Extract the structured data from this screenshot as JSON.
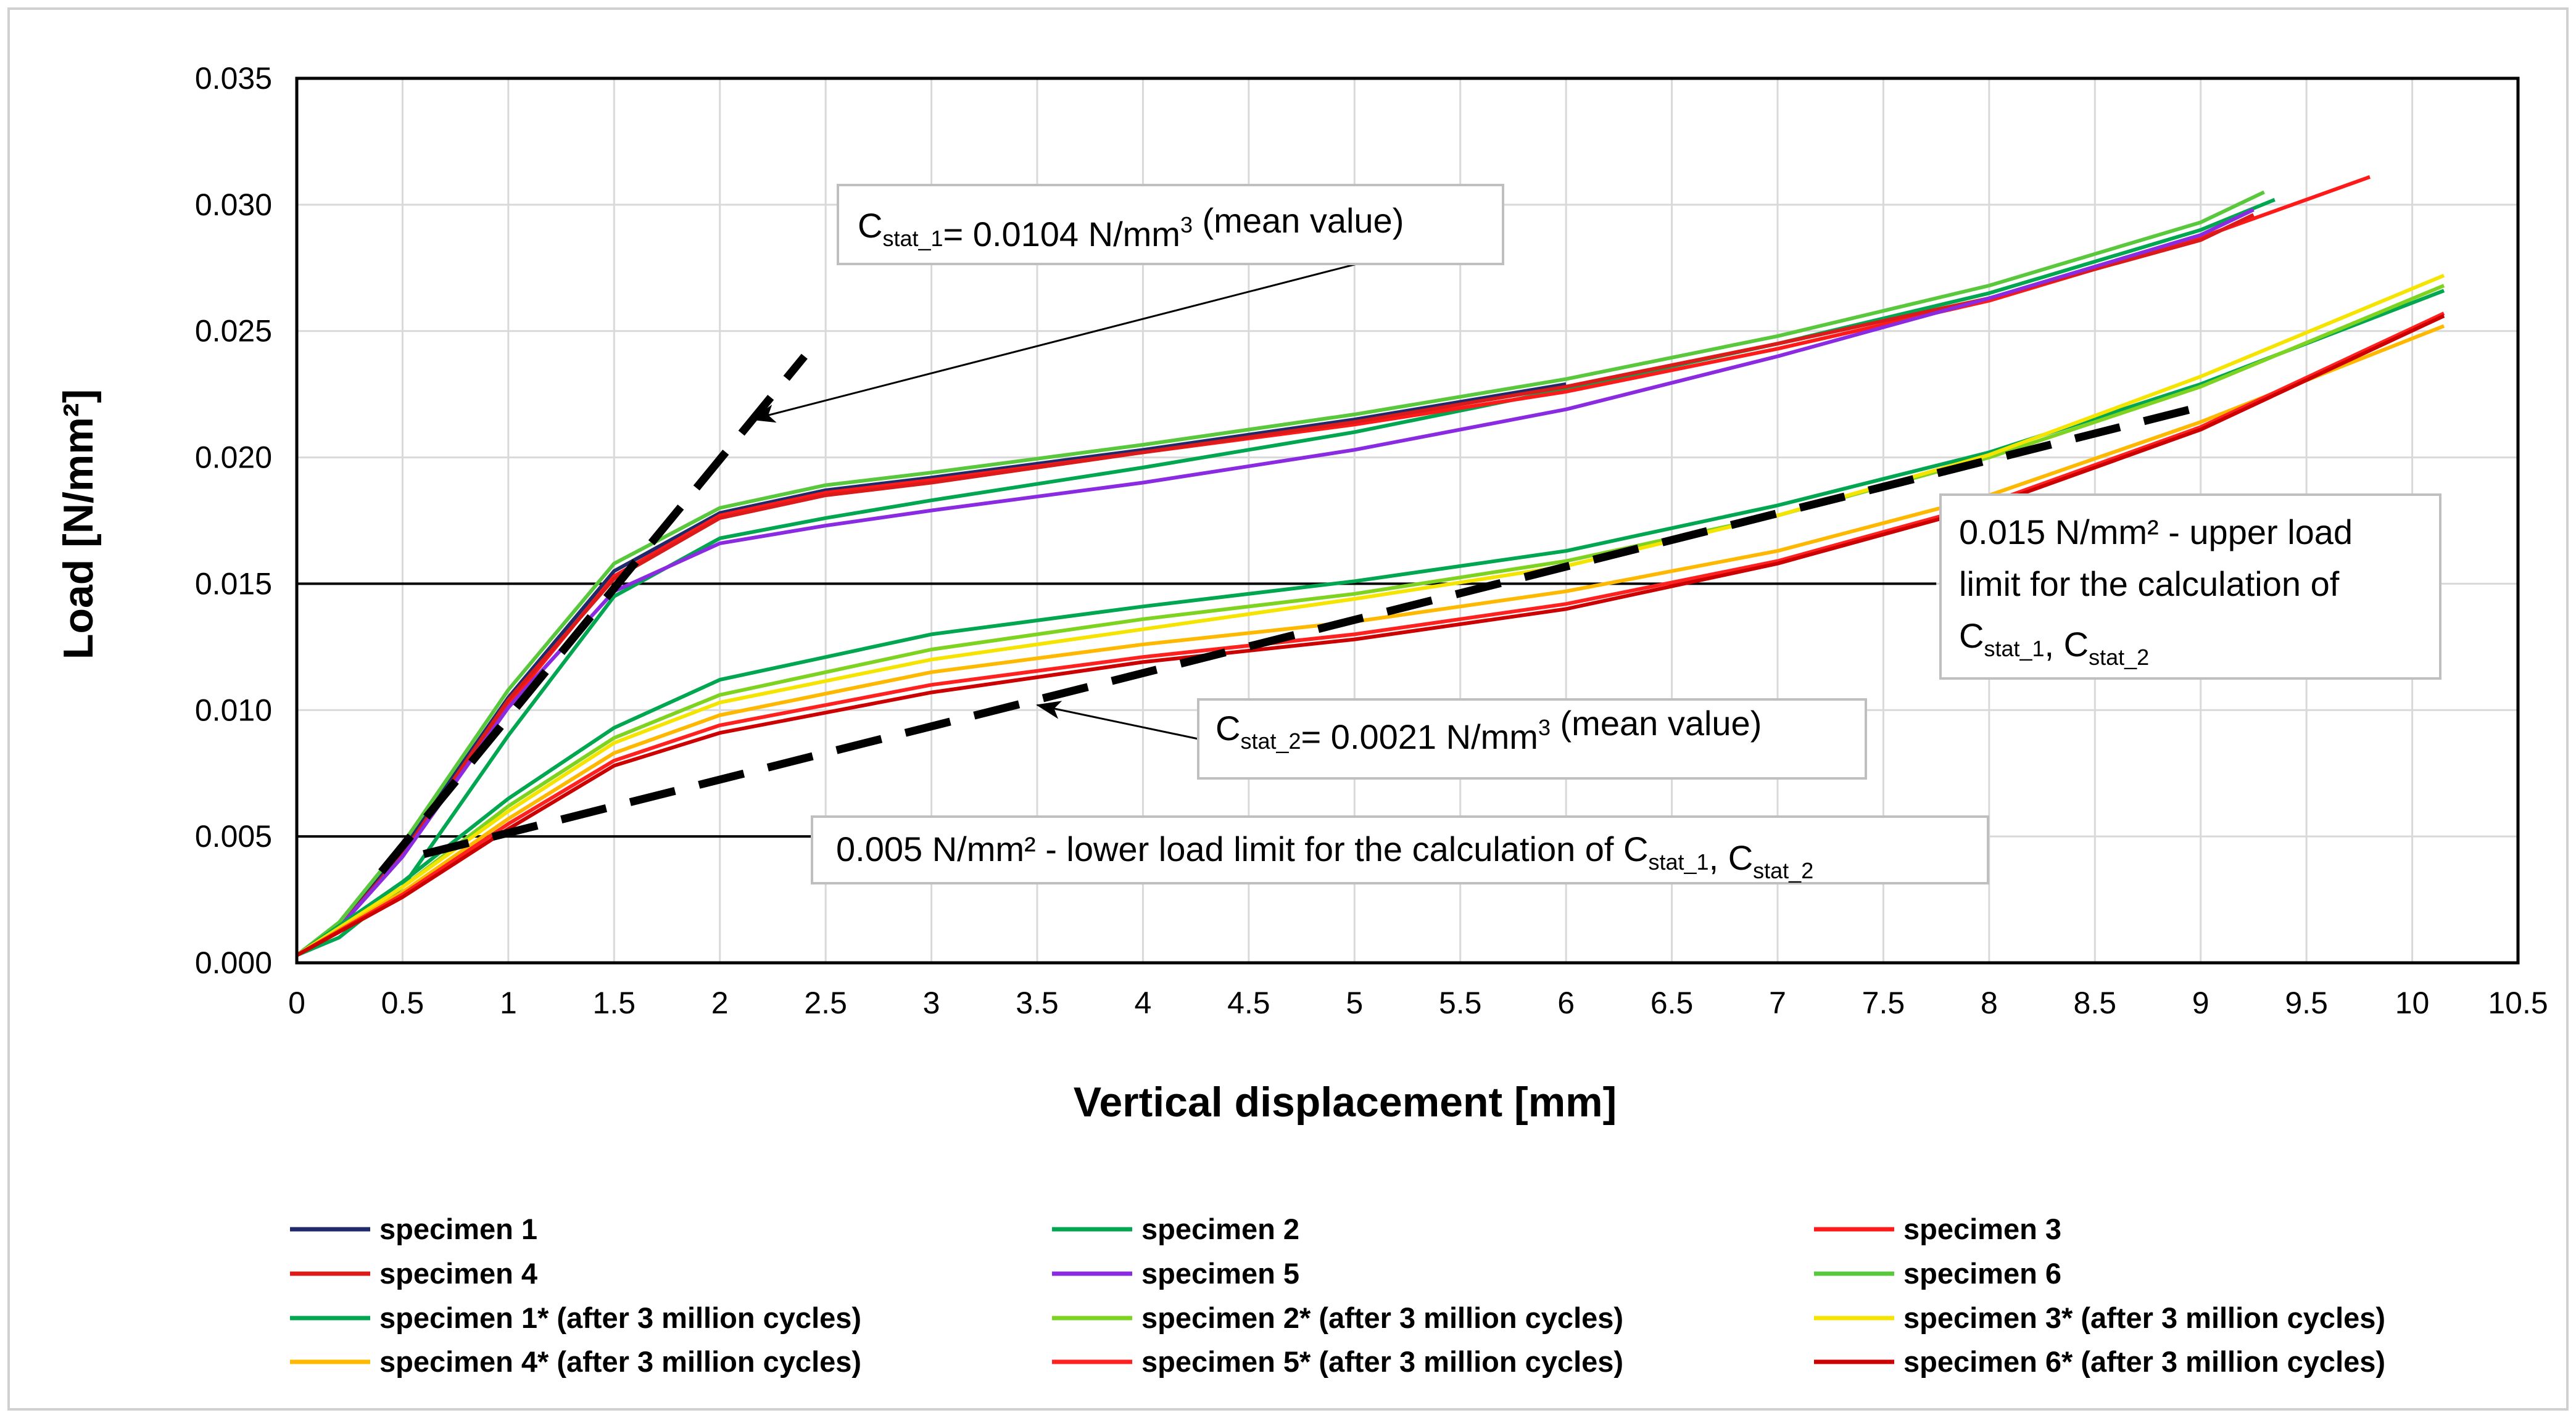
{
  "chart_data": {
    "type": "line",
    "title": "",
    "xlabel": "Vertical displacement [mm]",
    "ylabel": "Load  [N/mm²]",
    "xlim": [
      0,
      10.5
    ],
    "ylim": [
      0,
      0.035
    ],
    "grid": true,
    "x_ticks": [
      "0",
      "0.5",
      "1",
      "1.5",
      "2",
      "2.5",
      "3",
      "3.5",
      "4",
      "4.5",
      "5",
      "5.5",
      "6",
      "6.5",
      "7",
      "7.5",
      "8",
      "8.5",
      "9",
      "9.5",
      "10",
      "10.5"
    ],
    "y_ticks": [
      "0.000",
      "0.005",
      "0.010",
      "0.015",
      "0.020",
      "0.025",
      "0.030",
      "0.035"
    ],
    "series": [
      {
        "name": "specimen 1",
        "color": "#1f2a6b",
        "x": [
          0,
          0.2,
          0.5,
          1,
          1.5,
          2,
          2.5,
          3,
          4,
          5,
          6
        ],
        "y": [
          0.0003,
          0.0015,
          0.0045,
          0.0105,
          0.0155,
          0.0178,
          0.0187,
          0.0192,
          0.0203,
          0.0215,
          0.0229
        ]
      },
      {
        "name": "specimen 2",
        "color": "#00a650",
        "x": [
          0,
          0.2,
          0.5,
          1,
          1.5,
          2,
          2.5,
          3,
          4,
          5,
          6,
          7,
          8,
          9,
          9.35
        ],
        "y": [
          0.0003,
          0.001,
          0.003,
          0.009,
          0.0145,
          0.0168,
          0.0176,
          0.0183,
          0.0196,
          0.021,
          0.0227,
          0.0245,
          0.0265,
          0.029,
          0.0302
        ]
      },
      {
        "name": "specimen 3",
        "color": "#ff1a1a",
        "x": [
          0,
          0.2,
          0.5,
          1,
          1.5,
          2,
          2.5,
          3,
          4,
          5,
          6,
          7,
          8,
          9,
          9.8
        ],
        "y": [
          0.0003,
          0.0014,
          0.0042,
          0.0102,
          0.0153,
          0.0177,
          0.0186,
          0.0191,
          0.0202,
          0.0213,
          0.0226,
          0.0243,
          0.0262,
          0.0287,
          0.0311
        ]
      },
      {
        "name": "specimen 4",
        "color": "#dd1a1a",
        "x": [
          0,
          0.2,
          0.5,
          1,
          1.5,
          2,
          2.5,
          3,
          4,
          5,
          6,
          7,
          8,
          9,
          9.25
        ],
        "y": [
          0.0003,
          0.0014,
          0.0043,
          0.0104,
          0.0152,
          0.0176,
          0.0185,
          0.019,
          0.0202,
          0.0214,
          0.0228,
          0.0245,
          0.0263,
          0.0286,
          0.0296
        ]
      },
      {
        "name": "specimen 5",
        "color": "#8a2be2",
        "x": [
          0,
          0.2,
          0.5,
          1,
          1.5,
          2,
          2.5,
          3,
          4,
          5,
          6,
          7,
          8,
          9,
          9.25
        ],
        "y": [
          0.0003,
          0.0014,
          0.0042,
          0.0101,
          0.0147,
          0.0166,
          0.0173,
          0.0179,
          0.019,
          0.0203,
          0.0219,
          0.024,
          0.0263,
          0.0288,
          0.0298
        ]
      },
      {
        "name": "specimen 6",
        "color": "#5ac83c",
        "x": [
          0,
          0.2,
          0.5,
          1,
          1.5,
          2,
          2.5,
          3,
          4,
          5,
          6,
          7,
          8,
          9,
          9.3
        ],
        "y": [
          0.0003,
          0.0016,
          0.0047,
          0.0108,
          0.0158,
          0.018,
          0.0189,
          0.0194,
          0.0205,
          0.0217,
          0.0231,
          0.0248,
          0.0268,
          0.0293,
          0.0305
        ]
      },
      {
        "name": "specimen 1* (after 3 million cycles)",
        "color": "#00a650",
        "x": [
          0,
          0.5,
          1,
          1.5,
          2,
          3,
          4,
          5,
          6,
          7,
          8,
          9,
          10.15
        ],
        "y": [
          0.0003,
          0.0032,
          0.0065,
          0.0093,
          0.0112,
          0.013,
          0.0141,
          0.0151,
          0.0163,
          0.0181,
          0.0202,
          0.0229,
          0.0266
        ]
      },
      {
        "name": "specimen 2* (after 3 million cycles)",
        "color": "#7ed321",
        "x": [
          0,
          0.5,
          1,
          1.5,
          2,
          3,
          4,
          5,
          6,
          7,
          8,
          9,
          10.15
        ],
        "y": [
          0.0003,
          0.003,
          0.0062,
          0.0089,
          0.0106,
          0.0124,
          0.0136,
          0.0146,
          0.0159,
          0.0177,
          0.02,
          0.0228,
          0.0268
        ]
      },
      {
        "name": "specimen 3* (after 3 million cycles)",
        "color": "#f5e400",
        "x": [
          0,
          0.5,
          1,
          1.5,
          2,
          3,
          4,
          5,
          6,
          7,
          8,
          9,
          10.15
        ],
        "y": [
          0.0003,
          0.003,
          0.006,
          0.0087,
          0.0103,
          0.012,
          0.0132,
          0.0144,
          0.0157,
          0.0177,
          0.0201,
          0.0232,
          0.0272
        ]
      },
      {
        "name": "specimen 4* (after 3 million cycles)",
        "color": "#ffb800",
        "x": [
          0,
          0.5,
          1,
          1.5,
          2,
          3,
          4,
          5,
          6,
          7,
          8,
          9,
          10.15
        ],
        "y": [
          0.0003,
          0.0028,
          0.0057,
          0.0083,
          0.0098,
          0.0115,
          0.0126,
          0.0135,
          0.0147,
          0.0163,
          0.0185,
          0.0214,
          0.0252
        ]
      },
      {
        "name": "specimen 5* (after 3 million cycles)",
        "color": "#ff2020",
        "x": [
          0,
          0.5,
          1,
          1.5,
          2,
          3,
          4,
          5,
          6,
          7,
          8,
          9,
          10.15
        ],
        "y": [
          0.0003,
          0.0027,
          0.0055,
          0.008,
          0.0094,
          0.011,
          0.0121,
          0.013,
          0.0142,
          0.0159,
          0.0182,
          0.0212,
          0.0257
        ]
      },
      {
        "name": "specimen 6* (after 3 million cycles)",
        "color": "#cc0000",
        "x": [
          0,
          0.5,
          1,
          1.5,
          2,
          3,
          4,
          5,
          6,
          7,
          8,
          9,
          10.15
        ],
        "y": [
          0.0003,
          0.0026,
          0.0053,
          0.0078,
          0.0091,
          0.0107,
          0.0119,
          0.0128,
          0.014,
          0.0158,
          0.0181,
          0.0211,
          0.0256
        ]
      }
    ],
    "reference_lines": [
      {
        "name": "upper load limit",
        "y": 0.015,
        "x_from": 0,
        "x_to": 7.75
      },
      {
        "name": "lower load limit",
        "y": 0.005,
        "x_from": 0,
        "x_to": 2.45
      }
    ],
    "fit_lines": [
      {
        "name": "C_stat_1 fit",
        "x": [
          0.4,
          2.4
        ],
        "y": [
          0.0036,
          0.024
        ]
      },
      {
        "name": "C_stat_2 fit",
        "x": [
          0.6,
          9.0
        ],
        "y": [
          0.0043,
          0.022
        ]
      }
    ],
    "annotations": [
      {
        "id": "cstat1",
        "parts": [
          {
            "t": "C",
            "sub": false
          },
          {
            "t": "stat_1",
            "sub": true
          },
          {
            "t": "= 0.0104 N/mm",
            "sub": false
          },
          {
            "t": "3",
            "sup": true
          },
          {
            "t": "  (mean value)",
            "sub": false
          }
        ],
        "arrow_to": [
          2.15,
          0.0215
        ]
      },
      {
        "id": "cstat2",
        "parts": [
          {
            "t": "C",
            "sub": false
          },
          {
            "t": "stat_2",
            "sub": true
          },
          {
            "t": "= 0.0021 N/mm",
            "sub": false
          },
          {
            "t": "3",
            "sup": true
          },
          {
            "t": "  (mean value)",
            "sub": false
          }
        ],
        "arrow_to": [
          3.5,
          0.0102
        ]
      },
      {
        "id": "upper",
        "lines": [
          [
            {
              "t": "0.015 N/mm² - upper load"
            }
          ],
          [
            {
              "t": "limit for the calculation of"
            }
          ],
          [
            {
              "t": "C"
            },
            {
              "t": "stat_1",
              "sub": true
            },
            {
              "t": ", C"
            },
            {
              "t": "stat_2",
              "sub": true
            }
          ]
        ]
      },
      {
        "id": "lower",
        "parts": [
          {
            "t": "0.005 N/mm² - lower load limit for the calculation of C"
          },
          {
            "t": "stat_1",
            "sub": true
          },
          {
            "t": ", C"
          },
          {
            "t": "stat_2",
            "sub": true
          }
        ]
      }
    ]
  }
}
